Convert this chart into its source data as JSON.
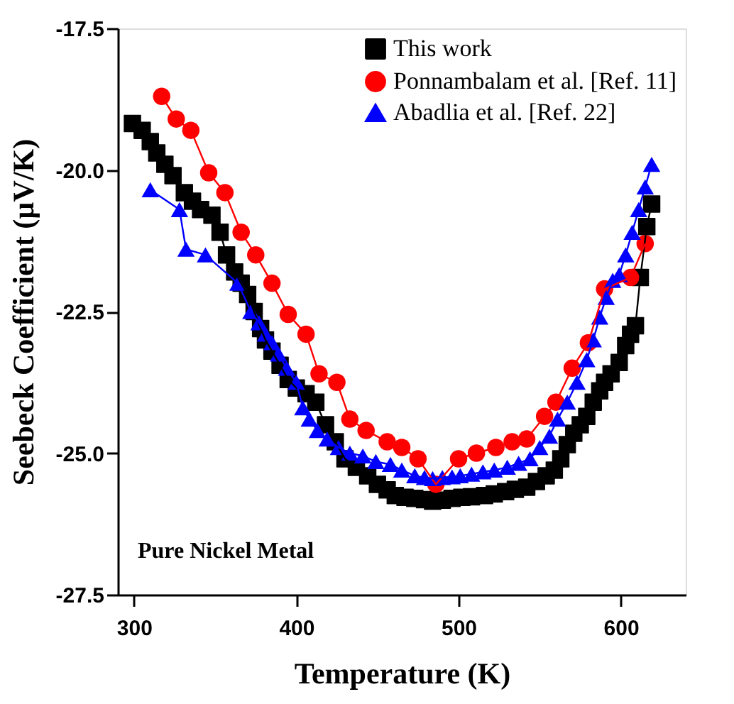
{
  "chart_data": {
    "type": "line",
    "xlabel": "Temperature (K)",
    "ylabel": "Seebeck Coefficient (µV/K)",
    "xlim": [
      290,
      640
    ],
    "xticks": [
      300,
      400,
      500,
      600
    ],
    "ylim": [
      -27.5,
      -17.5
    ],
    "yticks": [
      -27.5,
      {
        "value": -25,
        "label": "-25.0"
      },
      -22.5,
      {
        "value": -20,
        "label": "-20.0"
      },
      -17.5
    ],
    "grid": false,
    "legend": "top right",
    "line_style": "solid",
    "annotations": [
      "Pure Nickel Metal"
    ],
    "series": [
      {
        "name": "This work",
        "color": "#000000",
        "marker": "square",
        "x": [
          299,
          305,
          310,
          314,
          319,
          324,
          331,
          336,
          341,
          348,
          353,
          357,
          362,
          366,
          370,
          374,
          378,
          381,
          385,
          390,
          395,
          400,
          406,
          412,
          418,
          424,
          430,
          437,
          444,
          450,
          456,
          461,
          467,
          473,
          479,
          484,
          490,
          496,
          502,
          508,
          516,
          522,
          529,
          535,
          542,
          548,
          554,
          559,
          563,
          567,
          571,
          575,
          579,
          583,
          587,
          590,
          594,
          599,
          603,
          606,
          609,
          612,
          616,
          619
        ],
        "values": [
          -19.18,
          -19.3,
          -19.5,
          -19.7,
          -19.9,
          -20.1,
          -20.4,
          -20.55,
          -20.7,
          -20.8,
          -21.1,
          -21.5,
          -21.8,
          -22.0,
          -22.2,
          -22.5,
          -22.8,
          -23.0,
          -23.2,
          -23.45,
          -23.7,
          -23.85,
          -23.95,
          -24.1,
          -24.5,
          -24.8,
          -25.1,
          -25.25,
          -25.4,
          -25.55,
          -25.65,
          -25.75,
          -25.78,
          -25.8,
          -25.82,
          -25.85,
          -25.83,
          -25.8,
          -25.78,
          -25.77,
          -25.75,
          -25.72,
          -25.68,
          -25.64,
          -25.6,
          -25.5,
          -25.4,
          -25.3,
          -25.1,
          -24.85,
          -24.65,
          -24.5,
          -24.35,
          -24.1,
          -23.9,
          -23.75,
          -23.6,
          -23.4,
          -23.1,
          -22.9,
          -22.75,
          -21.9,
          -21.0,
          -20.6
        ]
      },
      {
        "name": "Ponnambalam et al. [Ref. 11]",
        "color": "#ff0000",
        "marker": "circle",
        "x": [
          317,
          326,
          335,
          346,
          356,
          366,
          375,
          385,
          395,
          406,
          414,
          425,
          433,
          443,
          456,
          465,
          475,
          486,
          500,
          511,
          523,
          533,
          542,
          553,
          560,
          570,
          580,
          590,
          606,
          615
        ],
        "values": [
          -18.7,
          -19.1,
          -19.3,
          -20.05,
          -20.4,
          -21.1,
          -21.5,
          -22.0,
          -22.55,
          -22.9,
          -23.6,
          -23.75,
          -24.4,
          -24.6,
          -24.8,
          -24.9,
          -25.1,
          -25.55,
          -25.1,
          -25.0,
          -24.9,
          -24.8,
          -24.75,
          -24.35,
          -24.1,
          -23.5,
          -23.05,
          -22.1,
          -21.9,
          -21.3
        ]
      },
      {
        "name": "Abadlia et al. [Ref. 22]",
        "color": "#0000ff",
        "marker": "triangle",
        "x": [
          310,
          328,
          332,
          344,
          364,
          372,
          377,
          381,
          385,
          389,
          394,
          400,
          404,
          408,
          413,
          419,
          426,
          433,
          441,
          449,
          458,
          465,
          473,
          479,
          484,
          490,
          496,
          501,
          508,
          515,
          522,
          530,
          537,
          544,
          550,
          556,
          561,
          567,
          573,
          579,
          583,
          587,
          591,
          595,
          599,
          603,
          607,
          611,
          615,
          619
        ],
        "values": [
          -20.35,
          -20.7,
          -21.4,
          -21.5,
          -22.0,
          -22.5,
          -22.7,
          -22.9,
          -23.05,
          -23.25,
          -23.5,
          -23.75,
          -24.2,
          -24.4,
          -24.6,
          -24.75,
          -24.9,
          -25.0,
          -25.05,
          -25.15,
          -25.2,
          -25.3,
          -25.4,
          -25.43,
          -25.45,
          -25.43,
          -25.42,
          -25.4,
          -25.37,
          -25.33,
          -25.3,
          -25.25,
          -25.18,
          -25.1,
          -24.9,
          -24.7,
          -24.4,
          -24.1,
          -23.75,
          -23.35,
          -23.0,
          -22.6,
          -22.25,
          -21.95,
          -21.85,
          -21.5,
          -21.1,
          -20.7,
          -20.3,
          -19.9
        ]
      }
    ]
  }
}
